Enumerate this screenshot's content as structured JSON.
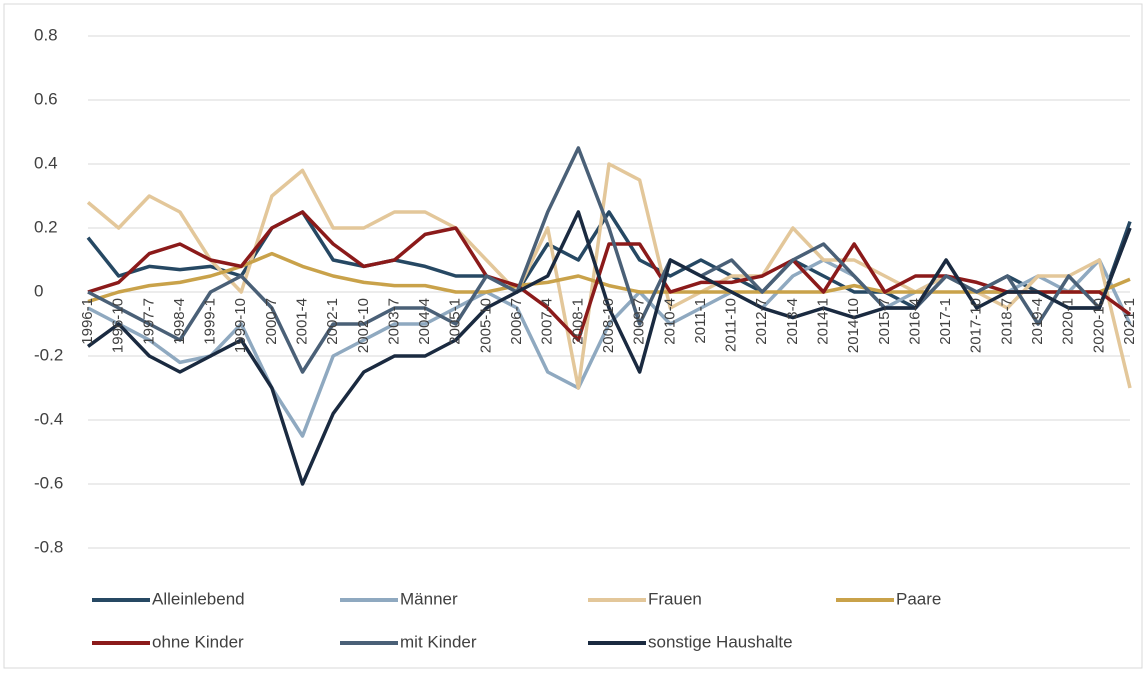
{
  "chart_data": {
    "type": "line",
    "categories": [
      "1996-1",
      "1996-10",
      "1997-7",
      "1998-4",
      "1999-1",
      "1999-10",
      "2000-7",
      "2001-4",
      "2002-1",
      "2002-10",
      "2003-7",
      "2004-4",
      "2005-1",
      "2005-10",
      "2006-7",
      "2007-4",
      "2008-1",
      "2008-10",
      "2009-7",
      "2010-4",
      "2011-1",
      "2011-10",
      "2012-7",
      "2013-4",
      "2014-1",
      "2014-10",
      "2015-7",
      "2016-4",
      "2017-1",
      "2017-10",
      "2018-7",
      "2019-4",
      "2020-1",
      "2020-10",
      "2021-1"
    ],
    "series": [
      {
        "name": "Alleinlebend",
        "color": "#264863",
        "values": [
          0.17,
          0.05,
          0.08,
          0.07,
          0.08,
          0.05,
          0.2,
          0.25,
          0.1,
          0.08,
          0.1,
          0.08,
          0.05,
          0.05,
          0.0,
          0.15,
          0.1,
          0.25,
          0.1,
          0.05,
          0.1,
          0.05,
          0.0,
          0.1,
          0.05,
          0.0,
          0.0,
          -0.05,
          0.05,
          0.0,
          0.05,
          0.0,
          -0.05,
          -0.05,
          0.22
        ]
      },
      {
        "name": "Männer",
        "color": "#8fa9c0",
        "values": [
          -0.05,
          -0.1,
          -0.15,
          -0.22,
          -0.2,
          -0.1,
          -0.3,
          -0.45,
          -0.2,
          -0.15,
          -0.1,
          -0.1,
          -0.05,
          0.0,
          -0.05,
          -0.25,
          -0.3,
          -0.1,
          0.0,
          -0.1,
          -0.05,
          0.0,
          -0.05,
          0.05,
          0.1,
          0.05,
          -0.05,
          0.0,
          0.05,
          0.0,
          0.0,
          0.05,
          0.0,
          0.1,
          -0.1
        ]
      },
      {
        "name": "Frauen",
        "color": "#e3c79a",
        "values": [
          0.28,
          0.2,
          0.3,
          0.25,
          0.1,
          0.0,
          0.3,
          0.38,
          0.2,
          0.2,
          0.25,
          0.25,
          0.2,
          0.1,
          0.0,
          0.2,
          -0.3,
          0.4,
          0.35,
          -0.05,
          0.0,
          0.05,
          0.05,
          0.2,
          0.1,
          0.1,
          0.05,
          0.0,
          0.05,
          0.0,
          -0.05,
          0.05,
          0.05,
          0.1,
          -0.3
        ]
      },
      {
        "name": "Paare",
        "color": "#c9a24a",
        "values": [
          -0.03,
          0.0,
          0.02,
          0.03,
          0.05,
          0.08,
          0.12,
          0.08,
          0.05,
          0.03,
          0.02,
          0.02,
          0.0,
          0.0,
          0.02,
          0.03,
          0.05,
          0.02,
          0.0,
          0.0,
          0.0,
          0.0,
          0.0,
          0.0,
          0.0,
          0.02,
          0.0,
          0.0,
          0.0,
          0.0,
          0.0,
          0.0,
          0.0,
          0.0,
          0.04
        ]
      },
      {
        "name": "ohne Kinder",
        "color": "#8b1a1a",
        "values": [
          0.0,
          0.03,
          0.12,
          0.15,
          0.1,
          0.08,
          0.2,
          0.25,
          0.15,
          0.08,
          0.1,
          0.18,
          0.2,
          0.05,
          0.02,
          -0.05,
          -0.15,
          0.15,
          0.15,
          0.0,
          0.03,
          0.03,
          0.05,
          0.1,
          0.0,
          0.15,
          0.0,
          0.05,
          0.05,
          0.03,
          0.0,
          0.0,
          0.0,
          0.0,
          -0.07
        ]
      },
      {
        "name": "mit Kinder",
        "color": "#4a6077",
        "values": [
          0.0,
          -0.05,
          -0.1,
          -0.15,
          0.0,
          0.05,
          -0.05,
          -0.25,
          -0.1,
          -0.1,
          -0.05,
          -0.05,
          -0.1,
          0.05,
          0.0,
          0.25,
          0.45,
          0.2,
          -0.1,
          0.1,
          0.05,
          0.1,
          0.0,
          0.1,
          0.15,
          0.05,
          -0.05,
          -0.05,
          0.05,
          0.0,
          0.05,
          -0.1,
          0.05,
          -0.05,
          0.2
        ]
      },
      {
        "name": "sonstige Haushalte",
        "color": "#1a2a40",
        "values": [
          -0.17,
          -0.1,
          -0.2,
          -0.25,
          -0.2,
          -0.15,
          -0.3,
          -0.6,
          -0.38,
          -0.25,
          -0.2,
          -0.2,
          -0.15,
          -0.05,
          0.0,
          0.05,
          0.25,
          -0.05,
          -0.25,
          0.1,
          0.05,
          0.0,
          -0.05,
          -0.08,
          -0.05,
          -0.08,
          -0.05,
          -0.05,
          0.1,
          -0.05,
          0.0,
          0.0,
          -0.05,
          -0.05,
          0.2
        ]
      }
    ],
    "ylim": [
      -0.8,
      0.8
    ],
    "yticks": [
      -0.8,
      -0.6,
      -0.4,
      -0.2,
      0,
      0.2,
      0.4,
      0.6,
      0.8
    ],
    "grid": true
  }
}
